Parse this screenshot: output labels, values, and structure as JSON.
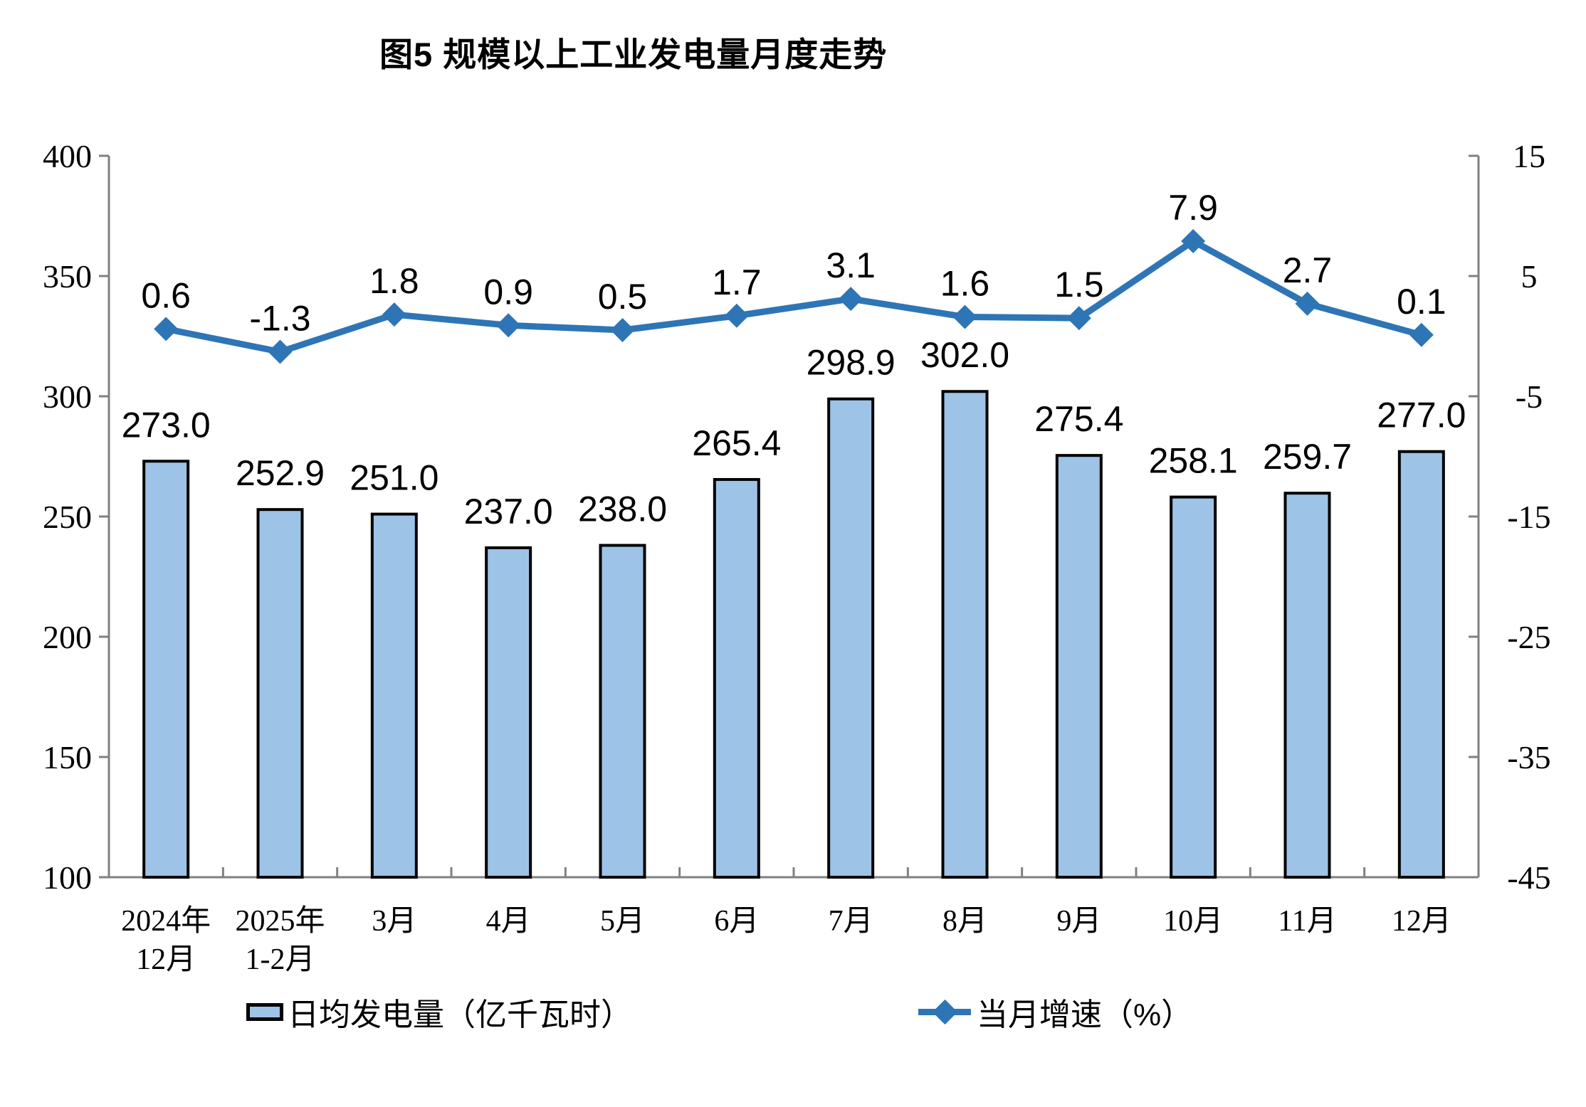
{
  "chart_data": {
    "type": "combo",
    "title": "图5 规模以上工业发电量月度走势",
    "categories": [
      [
        "2024年",
        "12月"
      ],
      [
        "2025年",
        "1-2月"
      ],
      [
        "3月"
      ],
      [
        "4月"
      ],
      [
        "5月"
      ],
      [
        "6月"
      ],
      [
        "7月"
      ],
      [
        "8月"
      ],
      [
        "9月"
      ],
      [
        "10月"
      ],
      [
        "11月"
      ],
      [
        "12月"
      ]
    ],
    "bar_series": {
      "name": "日均发电量（亿千瓦时）",
      "type": "bar",
      "axis": "left",
      "values": [
        273.0,
        252.9,
        251.0,
        237.0,
        238.0,
        265.4,
        298.9,
        302.0,
        275.4,
        258.1,
        259.7,
        277.0
      ],
      "color": "#9DC3E6",
      "border_color": "#000000"
    },
    "line_series": {
      "name": "当月增速（%）",
      "type": "line",
      "axis": "right",
      "marker": "diamond",
      "values": [
        0.6,
        -1.3,
        1.8,
        0.9,
        0.5,
        1.7,
        3.1,
        1.6,
        1.5,
        7.9,
        2.7,
        0.1
      ],
      "color": "#2E75B6"
    },
    "left_axis": {
      "min": 100,
      "max": 400,
      "ticks": [
        400,
        350,
        300,
        250,
        200,
        150,
        100
      ]
    },
    "right_axis": {
      "min": -45,
      "max": 15,
      "ticks": [
        15,
        5,
        -5,
        -15,
        -25,
        -35,
        -45
      ]
    },
    "grid": false,
    "legend_position": "bottom",
    "colors": {
      "axis": "#808080",
      "text": "#000000",
      "background": "#FFFFFF"
    }
  }
}
